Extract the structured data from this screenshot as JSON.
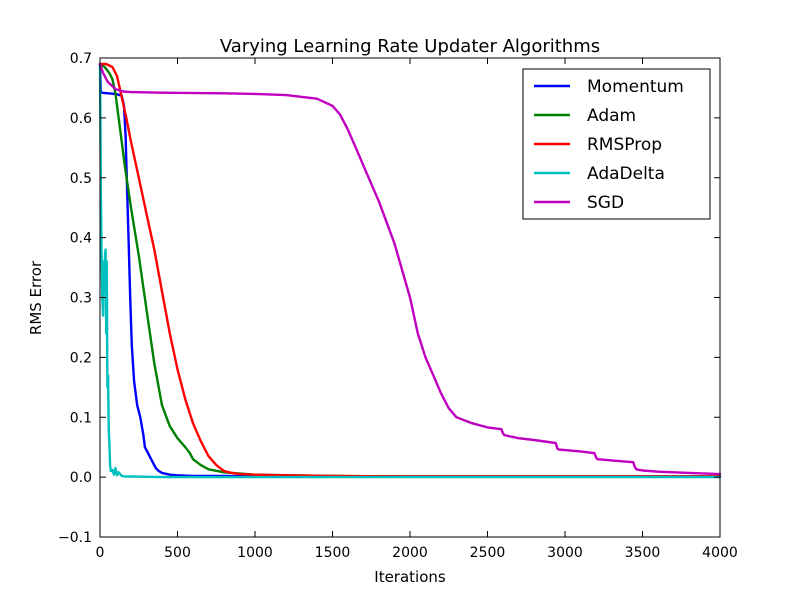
{
  "chart_data": {
    "type": "line",
    "title": "Varying Learning Rate Updater Algorithms",
    "xlabel": "Iterations",
    "ylabel": "RMS Error",
    "xlim": [
      0,
      4000
    ],
    "ylim": [
      -0.1,
      0.7
    ],
    "grid": false,
    "legend_position": "top-right",
    "x_ticks": [
      0,
      500,
      1000,
      1500,
      2000,
      2500,
      3000,
      3500,
      4000
    ],
    "x_tick_labels": [
      "0",
      "500",
      "1000",
      "1500",
      "2000",
      "2500",
      "3000",
      "3500",
      "4000"
    ],
    "y_ticks": [
      -0.1,
      0.0,
      0.1,
      0.2,
      0.3,
      0.4,
      0.5,
      0.6,
      0.7
    ],
    "y_tick_labels": [
      "−0.1",
      "0.0",
      "0.1",
      "0.2",
      "0.3",
      "0.4",
      "0.5",
      "0.6",
      "0.7"
    ],
    "series": [
      {
        "name": "Momentum",
        "color": "#0000ff",
        "x": [
          0,
          5,
          10,
          50,
          100,
          140,
          155,
          165,
          175,
          185,
          195,
          205,
          220,
          240,
          260,
          280,
          290,
          300,
          320,
          340,
          360,
          380,
          400,
          450,
          500,
          600,
          800,
          1000,
          4000
        ],
        "y": [
          0.69,
          0.645,
          0.642,
          0.641,
          0.64,
          0.637,
          0.62,
          0.57,
          0.48,
          0.39,
          0.3,
          0.22,
          0.16,
          0.12,
          0.1,
          0.07,
          0.05,
          0.045,
          0.035,
          0.025,
          0.015,
          0.01,
          0.007,
          0.004,
          0.003,
          0.002,
          0.002,
          0.001,
          0.001
        ]
      },
      {
        "name": "Adam",
        "color": "#008000",
        "x": [
          0,
          30,
          60,
          80,
          100,
          130,
          160,
          200,
          250,
          300,
          350,
          400,
          450,
          500,
          550,
          580,
          600,
          650,
          700,
          800,
          1000,
          1500,
          2000,
          4000
        ],
        "y": [
          0.69,
          0.685,
          0.675,
          0.665,
          0.64,
          0.58,
          0.52,
          0.45,
          0.37,
          0.28,
          0.19,
          0.12,
          0.085,
          0.065,
          0.05,
          0.04,
          0.03,
          0.02,
          0.013,
          0.008,
          0.004,
          0.002,
          0.001,
          0.001
        ]
      },
      {
        "name": "RMSProp",
        "color": "#ff0000",
        "x": [
          0,
          40,
          80,
          110,
          140,
          170,
          200,
          250,
          300,
          350,
          400,
          450,
          500,
          550,
          600,
          650,
          700,
          750,
          800,
          850,
          900,
          1000,
          1200,
          1500,
          2000,
          4000
        ],
        "y": [
          0.69,
          0.69,
          0.685,
          0.67,
          0.635,
          0.6,
          0.56,
          0.5,
          0.44,
          0.38,
          0.31,
          0.24,
          0.18,
          0.13,
          0.09,
          0.06,
          0.035,
          0.02,
          0.01,
          0.007,
          0.005,
          0.004,
          0.003,
          0.002,
          0.001,
          0.001
        ]
      },
      {
        "name": "AdaDelta",
        "color": "#00bfbf",
        "x": [
          0,
          3,
          6,
          10,
          15,
          20,
          25,
          28,
          32,
          36,
          40,
          44,
          48,
          52,
          56,
          60,
          65,
          70,
          80,
          90,
          100,
          110,
          120,
          140,
          160,
          200,
          400,
          4000
        ],
        "y": [
          0.69,
          0.57,
          0.47,
          0.38,
          0.3,
          0.27,
          0.36,
          0.32,
          0.37,
          0.38,
          0.24,
          0.36,
          0.15,
          0.17,
          0.08,
          0.06,
          0.02,
          0.01,
          0.012,
          0.004,
          0.015,
          0.003,
          0.008,
          0.002,
          0.001,
          0.001,
          0.0,
          0.0
        ]
      },
      {
        "name": "SGD",
        "color": "#bf00bf",
        "x": [
          0,
          20,
          50,
          100,
          150,
          200,
          400,
          800,
          1000,
          1200,
          1400,
          1500,
          1550,
          1600,
          1650,
          1700,
          1800,
          1900,
          2000,
          2050,
          2100,
          2150,
          2200,
          2250,
          2300,
          2400,
          2500,
          2590,
          2600,
          2610,
          2700,
          2800,
          2940,
          2950,
          2960,
          3100,
          3190,
          3200,
          3210,
          3300,
          3440,
          3450,
          3460,
          3500,
          3600,
          3800,
          4000
        ],
        "y": [
          0.69,
          0.675,
          0.66,
          0.648,
          0.644,
          0.643,
          0.642,
          0.641,
          0.64,
          0.638,
          0.632,
          0.62,
          0.605,
          0.58,
          0.55,
          0.52,
          0.46,
          0.39,
          0.3,
          0.24,
          0.2,
          0.17,
          0.14,
          0.115,
          0.1,
          0.09,
          0.083,
          0.08,
          0.073,
          0.07,
          0.065,
          0.062,
          0.057,
          0.048,
          0.046,
          0.043,
          0.04,
          0.033,
          0.03,
          0.028,
          0.025,
          0.017,
          0.013,
          0.011,
          0.009,
          0.007,
          0.005
        ]
      }
    ]
  }
}
